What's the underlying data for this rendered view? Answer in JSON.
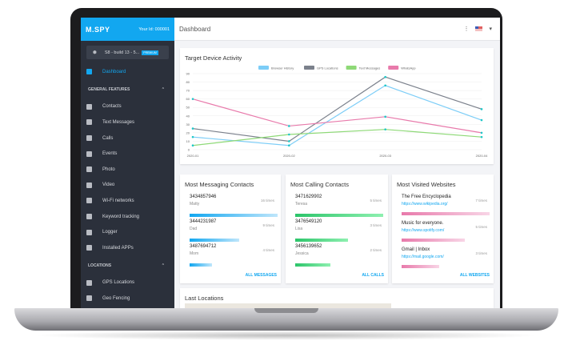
{
  "sidebar": {
    "logo": "M.SPY",
    "user_id": "Your Id: 000001",
    "device": "S8 - build 13 - 5...",
    "premium": "PREMIUM",
    "dashboard": "Dashboard",
    "general_header": "GENERAL FEATURES",
    "general_items": [
      "Contacts",
      "Text Messages",
      "Calls",
      "Events",
      "Photo",
      "Video",
      "Wi-Fi networks",
      "Keyword tracking",
      "Logger",
      "Installed APPs"
    ],
    "locations_header": "LOCATIONS",
    "location_items": [
      "GPS Locations",
      "Geo Fencing"
    ]
  },
  "topbar": {
    "title": "Dashboard",
    "menu": "⋮",
    "caret": "▾"
  },
  "chart_data": {
    "type": "line",
    "title": "Target Device Activity",
    "categories": [
      "2020-01",
      "2020-02",
      "2020-03",
      "2020-04"
    ],
    "ylim": [
      0,
      90
    ],
    "yticks": [
      0,
      10,
      20,
      30,
      40,
      50,
      60,
      70,
      80,
      90
    ],
    "legend": "top",
    "series": [
      {
        "name": "Browser History",
        "color": "#7ccdf7",
        "values": [
          15,
          5,
          76,
          35
        ]
      },
      {
        "name": "GPS Locations",
        "color": "#7b818c",
        "values": [
          25,
          10,
          86,
          48
        ]
      },
      {
        "name": "Text Messages",
        "color": "#8ed977",
        "values": [
          5,
          18,
          24,
          15
        ]
      },
      {
        "name": "WhatsApp",
        "color": "#e87aab",
        "values": [
          60,
          28,
          39,
          20
        ]
      }
    ]
  },
  "messaging": {
    "title": "Most Messaging Contacts",
    "link": "ALL MESSAGES",
    "items": [
      {
        "number": "3434857946",
        "name": "Matty",
        "times": "16 times",
        "value": 16
      },
      {
        "number": "3444231987",
        "name": "Dad",
        "times": "9 times",
        "value": 9
      },
      {
        "number": "3487694712",
        "name": "Mom",
        "times": "4 times",
        "value": 4
      }
    ]
  },
  "calling": {
    "title": "Most Calling Contacts",
    "link": "ALL CALLS",
    "items": [
      {
        "number": "3471629902",
        "name": "Teresa",
        "times": "5 times",
        "value": 5
      },
      {
        "number": "3476549120",
        "name": "Lisa",
        "times": "3 times",
        "value": 3
      },
      {
        "number": "3456139652",
        "name": "Jessica",
        "times": "2 times",
        "value": 2
      }
    ]
  },
  "websites": {
    "title": "Most Visited Websites",
    "link": "ALL WEBSITES",
    "items": [
      {
        "name": "The Free Encyclopedia",
        "url": "https://www.wikipedia.org/",
        "times": "7 times",
        "value": 7
      },
      {
        "name": "Music for everyone.",
        "url": "https://www.spotify.com/",
        "times": "5 times",
        "value": 5
      },
      {
        "name": "Gmail | Inbox",
        "url": "https://mail.google.com/",
        "times": "3 times",
        "value": 3
      }
    ]
  },
  "locations": {
    "title": "Last Locations"
  }
}
